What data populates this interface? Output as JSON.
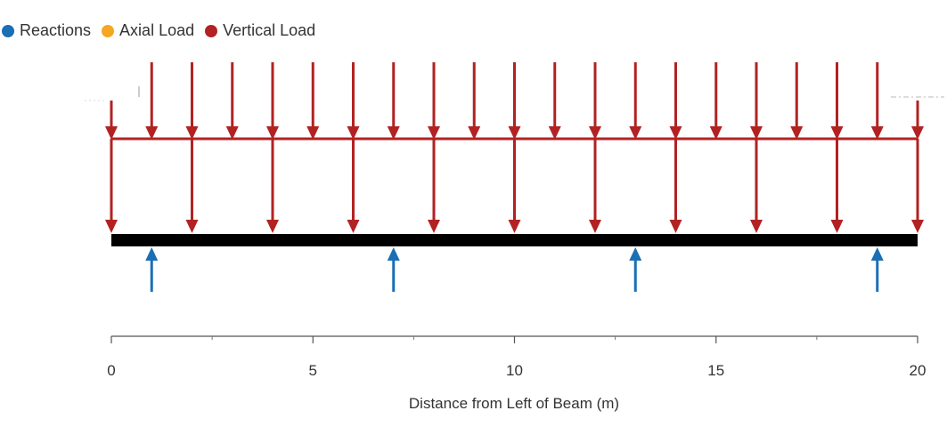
{
  "legend": {
    "reactions": {
      "label": "Reactions",
      "color": "#1a6fb5"
    },
    "axial": {
      "label": "Axial Load",
      "color": "#f5a623"
    },
    "vertical": {
      "label": "Vertical Load",
      "color": "#b22222"
    }
  },
  "axis": {
    "title": "Distance from Left of Beam (m)",
    "min": 0,
    "max": 20,
    "major_ticks": [
      0,
      5,
      10,
      15,
      20
    ],
    "minor_ticks": [
      2.5,
      7.5,
      12.5,
      17.5
    ]
  },
  "beam": {
    "start": 0,
    "end": 20,
    "color": "#000000"
  },
  "distributed_load": {
    "start": 0,
    "end": 20,
    "upper_arrows": [
      1,
      2,
      3,
      4,
      5,
      6,
      7,
      8,
      9,
      10,
      11,
      12,
      13,
      14,
      15,
      16,
      17,
      18,
      19
    ],
    "edge_arrows": [
      0,
      20
    ]
  },
  "point_loads": [
    0,
    2,
    4,
    6,
    8,
    10,
    12,
    14,
    16,
    18,
    20
  ],
  "reactions": [
    1,
    7,
    13,
    19
  ]
}
